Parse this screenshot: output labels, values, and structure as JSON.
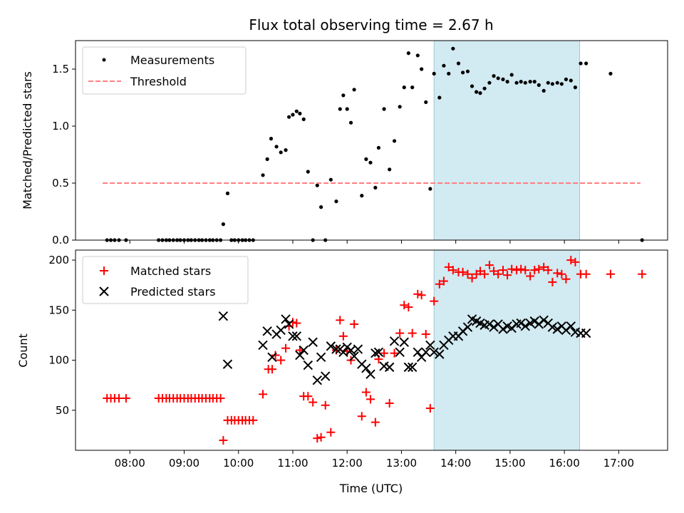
{
  "chart_data": [
    {
      "type": "scatter",
      "title": "Flux total observing time = 2.67 h",
      "xlabel": "",
      "ylabel": "Matched/Predicted stars",
      "ylim": [
        0,
        1.75
      ],
      "yticks": [
        0.0,
        0.5,
        1.0,
        1.5
      ],
      "ytick_labels": [
        "0.0",
        "0.5",
        "1.0",
        "1.5"
      ],
      "xlim_hours": [
        7.0,
        17.9
      ],
      "shaded_span_hours": [
        13.6,
        16.28
      ],
      "shade_color": "#add8e6",
      "legend_position": "upper-left",
      "series": [
        {
          "name": "Measurements",
          "kind": "dots",
          "color": "#000000",
          "x": [
            7.58,
            7.65,
            7.72,
            7.8,
            7.93,
            8.53,
            8.6,
            8.67,
            8.73,
            8.8,
            8.87,
            8.93,
            9.0,
            9.07,
            9.13,
            9.2,
            9.27,
            9.33,
            9.4,
            9.47,
            9.53,
            9.6,
            9.67,
            9.72,
            9.8,
            9.87,
            9.93,
            10.0,
            10.07,
            10.13,
            10.2,
            10.27,
            10.45,
            10.53,
            10.6,
            10.7,
            10.78,
            10.87,
            10.93,
            11.0,
            11.07,
            11.13,
            11.2,
            11.28,
            11.37,
            11.45,
            11.52,
            11.6,
            11.7,
            11.8,
            11.87,
            11.93,
            12.0,
            12.07,
            12.13,
            12.27,
            12.35,
            12.43,
            12.52,
            12.58,
            12.68,
            12.78,
            12.87,
            12.97,
            13.05,
            13.13,
            13.2,
            13.3,
            13.37,
            13.45,
            13.53,
            13.6,
            13.7,
            13.78,
            13.87,
            13.95,
            14.05,
            14.13,
            14.22,
            14.3,
            14.38,
            14.45,
            14.53,
            14.62,
            14.7,
            14.78,
            14.87,
            14.95,
            15.03,
            15.12,
            15.2,
            15.28,
            15.37,
            15.45,
            15.53,
            15.62,
            15.7,
            15.78,
            15.87,
            15.95,
            16.03,
            16.12,
            16.2,
            16.3,
            16.4,
            16.85,
            17.43
          ],
          "y": [
            0,
            0,
            0,
            0,
            0,
            0,
            0,
            0,
            0,
            0,
            0,
            0,
            0,
            0,
            0,
            0,
            0,
            0,
            0,
            0,
            0,
            0,
            0,
            0.14,
            0.41,
            0,
            0,
            0,
            0,
            0,
            0,
            0,
            0.57,
            0.71,
            0.89,
            0.82,
            0.77,
            0.79,
            1.08,
            1.1,
            1.13,
            1.11,
            1.06,
            0.6,
            0,
            0.48,
            0.29,
            0,
            0.53,
            0.34,
            1.15,
            1.27,
            1.15,
            1.03,
            1.32,
            0.39,
            0.71,
            0.68,
            0.46,
            0.81,
            1.15,
            0.62,
            0.87,
            1.17,
            1.34,
            1.64,
            1.34,
            1.62,
            1.5,
            1.21,
            0.45,
            1.46,
            1.25,
            1.53,
            1.46,
            1.68,
            1.55,
            1.47,
            1.48,
            1.35,
            1.3,
            1.29,
            1.33,
            1.38,
            1.44,
            1.42,
            1.41,
            1.39,
            1.45,
            1.38,
            1.39,
            1.38,
            1.39,
            1.39,
            1.36,
            1.31,
            1.38,
            1.37,
            1.38,
            1.37,
            1.41,
            1.4,
            1.34,
            1.55,
            1.55,
            1.46,
            0
          ]
        },
        {
          "name": "Threshold",
          "kind": "dashed-line",
          "color": "#ff7f7f",
          "x": [
            7.5,
            17.4
          ],
          "y": [
            0.5,
            0.5
          ]
        }
      ]
    },
    {
      "type": "scatter",
      "title": "",
      "xlabel": "Time (UTC)",
      "ylabel": "Count",
      "ylim": [
        10,
        210
      ],
      "yticks": [
        50,
        100,
        150,
        200
      ],
      "ytick_labels": [
        "50",
        "100",
        "150",
        "200"
      ],
      "xlim_hours": [
        7.0,
        17.9
      ],
      "xticks_hours": [
        8,
        9,
        10,
        11,
        12,
        13,
        14,
        15,
        16,
        17
      ],
      "xtick_labels": [
        "08:00",
        "09:00",
        "10:00",
        "11:00",
        "12:00",
        "13:00",
        "14:00",
        "15:00",
        "16:00",
        "17:00"
      ],
      "shaded_span_hours": [
        13.6,
        16.28
      ],
      "shade_color": "#add8e6",
      "legend_position": "upper-left",
      "series": [
        {
          "name": "Matched stars",
          "marker": "plus",
          "color": "#ff0000",
          "x": [
            7.58,
            7.65,
            7.72,
            7.8,
            7.93,
            8.53,
            8.6,
            8.67,
            8.73,
            8.8,
            8.87,
            8.93,
            9.0,
            9.07,
            9.13,
            9.2,
            9.27,
            9.33,
            9.4,
            9.47,
            9.53,
            9.6,
            9.67,
            9.72,
            9.8,
            9.87,
            9.93,
            10.0,
            10.07,
            10.13,
            10.2,
            10.27,
            10.45,
            10.55,
            10.62,
            10.68,
            10.78,
            10.87,
            10.93,
            11.0,
            11.07,
            11.13,
            11.2,
            11.28,
            11.37,
            11.45,
            11.52,
            11.6,
            11.7,
            11.8,
            11.87,
            11.93,
            12.0,
            12.07,
            12.13,
            12.27,
            12.35,
            12.43,
            12.52,
            12.58,
            12.68,
            12.78,
            12.87,
            12.97,
            13.05,
            13.13,
            13.2,
            13.3,
            13.37,
            13.45,
            13.53,
            13.6,
            13.7,
            13.78,
            13.87,
            13.95,
            14.05,
            14.13,
            14.22,
            14.3,
            14.38,
            14.45,
            14.53,
            14.62,
            14.7,
            14.78,
            14.87,
            14.95,
            15.03,
            15.12,
            15.2,
            15.28,
            15.37,
            15.45,
            15.53,
            15.62,
            15.7,
            15.78,
            15.87,
            15.95,
            16.03,
            16.12,
            16.2,
            16.3,
            16.4,
            16.85,
            17.43
          ],
          "y": [
            62,
            62,
            62,
            62,
            62,
            62,
            62,
            62,
            62,
            62,
            62,
            62,
            62,
            62,
            62,
            62,
            62,
            62,
            62,
            62,
            62,
            62,
            62,
            20,
            40,
            40,
            40,
            40,
            40,
            40,
            40,
            40,
            66,
            91,
            91,
            105,
            100,
            112,
            134,
            138,
            137,
            110,
            64,
            64,
            58,
            22,
            23,
            55,
            28,
            110,
            140,
            124,
            109,
            100,
            136,
            44,
            68,
            61,
            38,
            101,
            107,
            57,
            107,
            127,
            155,
            153,
            127,
            166,
            165,
            126,
            52,
            159,
            176,
            179,
            193,
            190,
            188,
            188,
            186,
            182,
            186,
            189,
            186,
            195,
            189,
            186,
            190,
            185,
            191,
            190,
            191,
            190,
            184,
            190,
            191,
            193,
            190,
            178,
            187,
            186,
            181,
            200,
            198,
            186,
            186,
            186,
            186
          ]
        },
        {
          "name": "Predicted stars",
          "marker": "x",
          "color": "#000000",
          "x": [
            9.72,
            9.8,
            10.45,
            10.53,
            10.62,
            10.7,
            10.78,
            10.87,
            10.93,
            11.0,
            11.07,
            11.13,
            11.2,
            11.28,
            11.37,
            11.45,
            11.52,
            11.6,
            11.7,
            11.8,
            11.87,
            11.93,
            12.0,
            12.07,
            12.13,
            12.2,
            12.27,
            12.35,
            12.43,
            12.52,
            12.58,
            12.68,
            12.78,
            12.87,
            12.97,
            13.05,
            13.13,
            13.2,
            13.3,
            13.37,
            13.45,
            13.53,
            13.6,
            13.7,
            13.78,
            13.87,
            13.95,
            14.05,
            14.13,
            14.22,
            14.3,
            14.38,
            14.45,
            14.53,
            14.62,
            14.7,
            14.78,
            14.87,
            14.95,
            15.03,
            15.12,
            15.2,
            15.28,
            15.37,
            15.45,
            15.53,
            15.62,
            15.7,
            15.78,
            15.87,
            15.95,
            16.03,
            16.12,
            16.2,
            16.3,
            16.4
          ],
          "y": [
            144,
            96,
            115,
            129,
            103,
            126,
            130,
            141,
            136,
            124,
            124,
            105,
            110,
            95,
            118,
            80,
            103,
            84,
            114,
            111,
            111,
            108,
            113,
            110,
            104,
            111,
            96,
            92,
            86,
            107,
            108,
            94,
            93,
            119,
            108,
            118,
            93,
            93,
            108,
            103,
            108,
            115,
            108,
            106,
            115,
            120,
            124,
            124,
            129,
            133,
            141,
            139,
            137,
            135,
            136,
            133,
            136,
            131,
            134,
            132,
            136,
            137,
            134,
            137,
            139,
            136,
            140,
            137,
            133,
            131,
            134,
            130,
            134,
            128,
            127,
            127
          ]
        }
      ]
    }
  ]
}
